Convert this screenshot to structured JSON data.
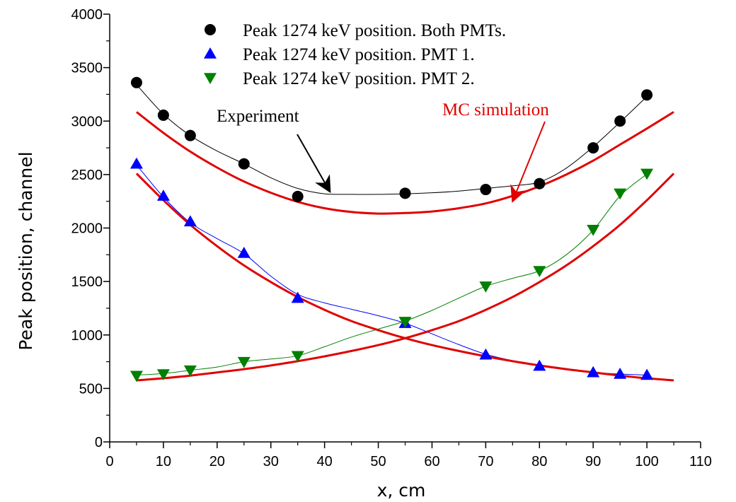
{
  "chart_data": {
    "type": "scatter",
    "xlabel": "x, cm",
    "ylabel": "Peak position, channel",
    "xlim": [
      0,
      110
    ],
    "ylim": [
      0,
      4000
    ],
    "x_ticks": [
      0,
      10,
      20,
      30,
      40,
      50,
      60,
      70,
      80,
      90,
      100,
      110
    ],
    "y_ticks": [
      0,
      500,
      1000,
      1500,
      2000,
      2500,
      3000,
      3500,
      4000
    ],
    "x_minor_step": 5,
    "y_minor_step": 250,
    "grid": false,
    "legend_position": "top",
    "series": [
      {
        "name": "Peak 1274 keV position. Both PMTs.",
        "marker": "circle",
        "color": "#000000",
        "x": [
          5,
          10,
          15,
          25,
          35,
          55,
          70,
          80,
          90,
          95,
          100
        ],
        "y": [
          3360,
          3055,
          2865,
          2600,
          2295,
          2325,
          2360,
          2415,
          2750,
          3000,
          3245
        ]
      },
      {
        "name": "Peak 1274 keV position. PMT 1.",
        "marker": "triangle-up",
        "color": "#0000ff",
        "x": [
          5,
          10,
          15,
          25,
          35,
          55,
          70,
          80,
          90,
          95,
          100
        ],
        "y": [
          2600,
          2300,
          2060,
          1765,
          1345,
          1110,
          815,
          710,
          650,
          635,
          625
        ]
      },
      {
        "name": "Peak 1274 keV position. PMT 2.",
        "marker": "triangle-down",
        "color": "#008000",
        "x": [
          5,
          10,
          15,
          25,
          35,
          55,
          70,
          80,
          90,
          95,
          100
        ],
        "y": [
          620,
          635,
          670,
          750,
          805,
          1125,
          1455,
          1600,
          1985,
          2325,
          2510
        ]
      }
    ],
    "fit_curves": [
      {
        "role": "experiment-fit-both",
        "color": "#000000",
        "x": [
          5,
          10,
          15,
          20,
          25,
          30,
          35,
          40,
          45,
          50,
          55,
          60,
          65,
          70,
          75,
          80,
          85,
          90,
          95,
          100
        ],
        "y": [
          3340,
          3065,
          2865,
          2720,
          2600,
          2470,
          2370,
          2320,
          2315,
          2315,
          2320,
          2330,
          2345,
          2370,
          2395,
          2430,
          2560,
          2760,
          2990,
          3230
        ]
      },
      {
        "role": "experiment-fit-pmt1",
        "color": "#0000ff",
        "x": [
          5,
          10,
          15,
          20,
          25,
          30,
          35,
          40,
          45,
          50,
          55,
          60,
          65,
          70,
          75,
          80,
          85,
          90,
          95,
          100
        ],
        "y": [
          2590,
          2290,
          2050,
          1900,
          1760,
          1550,
          1380,
          1300,
          1240,
          1180,
          1110,
          1010,
          910,
          820,
          760,
          710,
          675,
          650,
          635,
          625
        ]
      },
      {
        "role": "experiment-fit-pmt2",
        "color": "#008000",
        "x": [
          5,
          10,
          15,
          20,
          25,
          30,
          35,
          40,
          45,
          50,
          55,
          60,
          65,
          70,
          75,
          80,
          85,
          90,
          95,
          100
        ],
        "y": [
          625,
          640,
          670,
          700,
          750,
          775,
          805,
          890,
          980,
          1055,
          1130,
          1230,
          1345,
          1455,
          1530,
          1600,
          1750,
          1980,
          2300,
          2505
        ]
      },
      {
        "role": "mc-simulation-both",
        "color": "#e00000",
        "x": [
          5,
          10,
          15,
          20,
          25,
          30,
          35,
          40,
          45,
          50,
          55,
          60,
          65,
          70,
          75,
          80,
          85,
          90,
          95,
          100,
          105
        ],
        "y": [
          3085,
          2890,
          2715,
          2565,
          2435,
          2330,
          2245,
          2185,
          2150,
          2135,
          2140,
          2155,
          2185,
          2230,
          2300,
          2390,
          2500,
          2630,
          2780,
          2930,
          3085
        ]
      },
      {
        "role": "mc-simulation-pmt1",
        "color": "#e00000",
        "x": [
          5,
          10,
          15,
          20,
          25,
          30,
          35,
          40,
          45,
          50,
          55,
          60,
          65,
          70,
          75,
          80,
          85,
          90,
          95,
          100,
          105
        ],
        "y": [
          2510,
          2260,
          2030,
          1830,
          1650,
          1495,
          1355,
          1235,
          1130,
          1045,
          970,
          905,
          850,
          800,
          755,
          715,
          680,
          650,
          620,
          595,
          575
        ]
      },
      {
        "role": "mc-simulation-pmt2",
        "color": "#e00000",
        "x": [
          5,
          10,
          15,
          20,
          25,
          30,
          35,
          40,
          45,
          50,
          55,
          60,
          65,
          70,
          75,
          80,
          85,
          90,
          95,
          100,
          105
        ],
        "y": [
          575,
          595,
          620,
          650,
          680,
          715,
          755,
          800,
          850,
          905,
          970,
          1045,
          1130,
          1235,
          1355,
          1495,
          1650,
          1830,
          2030,
          2260,
          2510
        ]
      }
    ],
    "annotations": [
      {
        "text": "Experiment",
        "color": "#000000",
        "arrow_to": [
          41,
          2340
        ]
      },
      {
        "text": "MC simulation",
        "color": "#e00000",
        "arrow_to": [
          75,
          2250
        ]
      }
    ]
  }
}
